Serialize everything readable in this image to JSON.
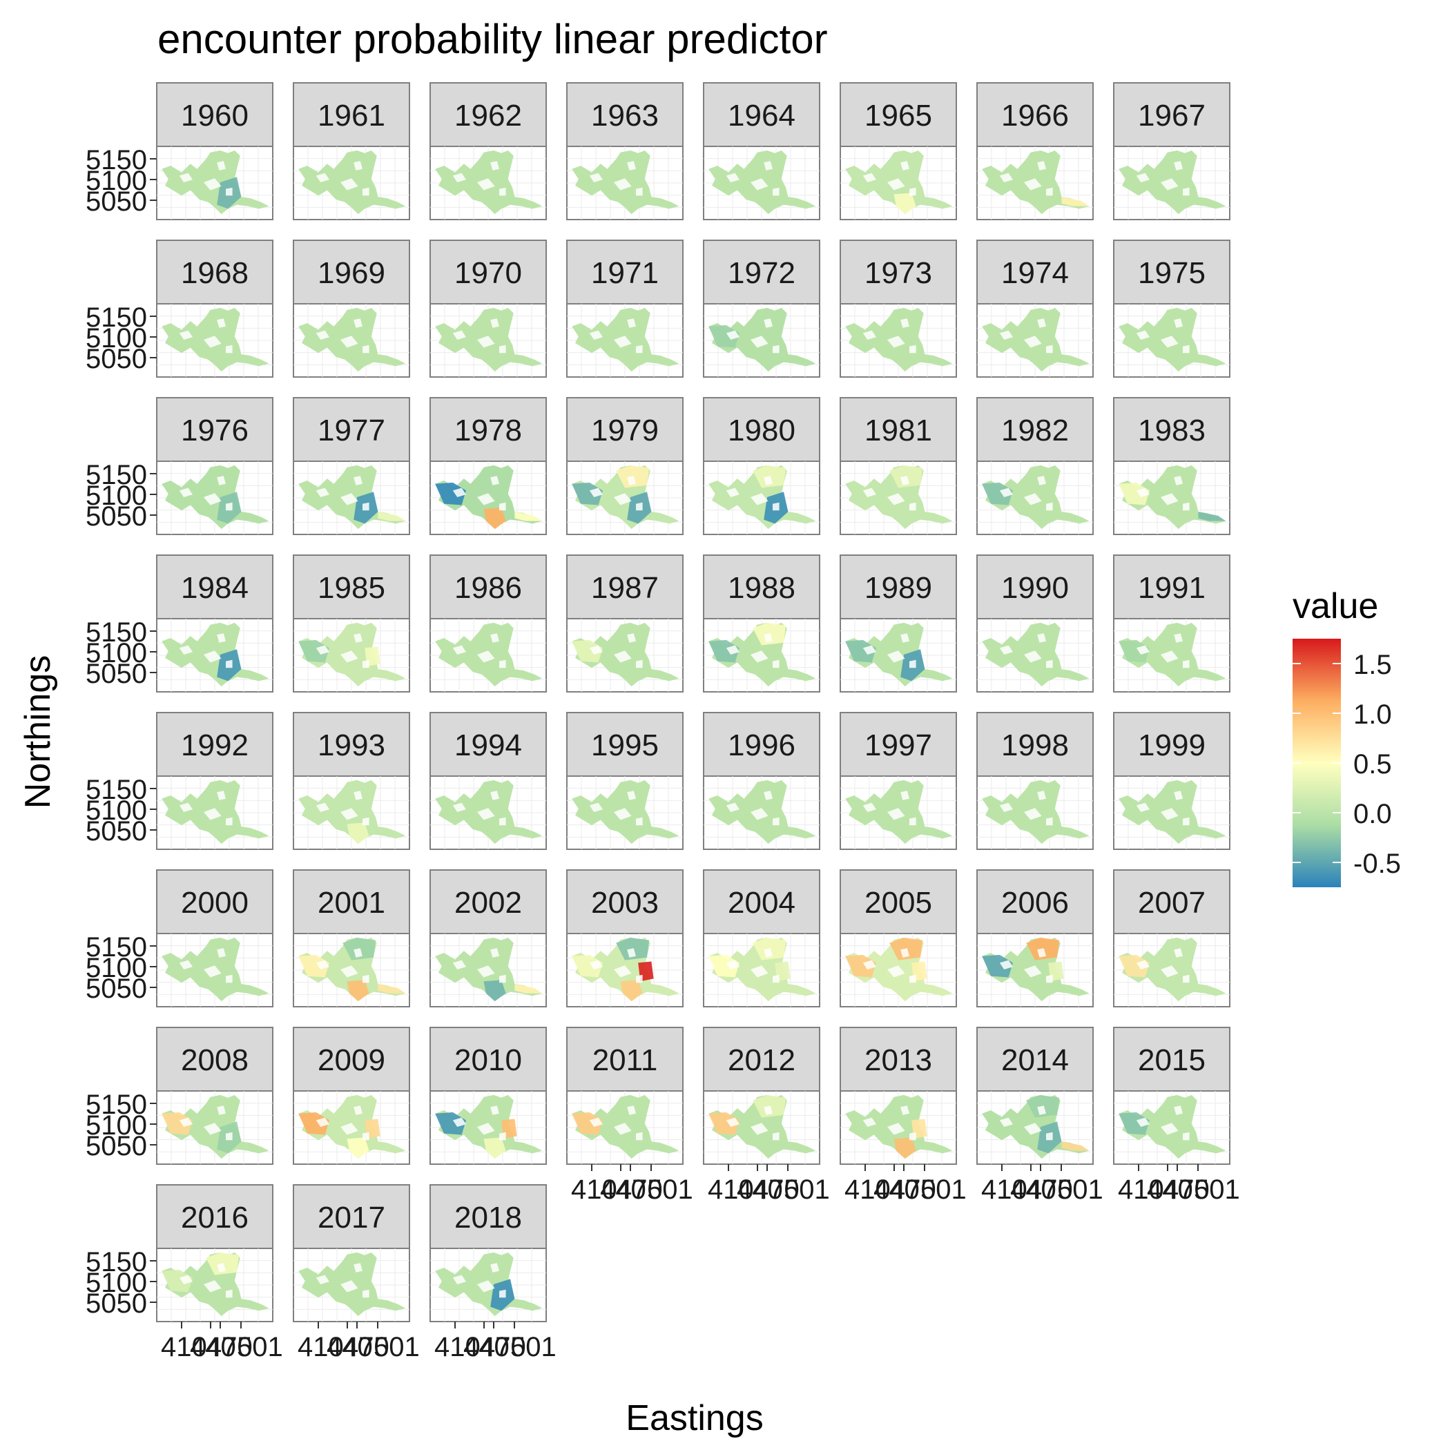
{
  "chart_data": {
    "type": "heatmap",
    "title": "encounter probability linear predictor",
    "xlabel": "Eastings",
    "ylabel": "Northings",
    "legend": {
      "title": "value",
      "placement": "right",
      "ticks": [
        1.5,
        1.0,
        0.5,
        0.0,
        -0.5
      ],
      "tick_labels": [
        "1.5",
        "1.0",
        "0.5",
        "0.0",
        "-0.5"
      ],
      "range": [
        -0.75,
        1.75
      ],
      "colors": [
        "#2b83ba",
        "#abdda4",
        "#ffffbf",
        "#fdae61",
        "#d7191c"
      ]
    },
    "y_ticks": [
      "5150",
      "5100",
      "5050"
    ],
    "y_tick_values": [
      5150,
      5100,
      5050
    ],
    "x_ticks": [
      "410",
      "440",
      "470",
      "501"
    ],
    "x_tick_values": [
      410,
      440,
      470,
      501
    ],
    "panel_note": "x tick labels overlap in the figure and render as '41ØØ87 1' style glyph clusters",
    "facets": [
      {
        "year": "1960",
        "lvl": 0.0,
        "hot": [
          {
            "r": "se",
            "v": -0.4
          }
        ]
      },
      {
        "year": "1961",
        "lvl": 0.0,
        "hot": []
      },
      {
        "year": "1962",
        "lvl": 0.0,
        "hot": []
      },
      {
        "year": "1963",
        "lvl": 0.0,
        "hot": []
      },
      {
        "year": "1964",
        "lvl": 0.0,
        "hot": []
      },
      {
        "year": "1965",
        "lvl": 0.05,
        "hot": [
          {
            "r": "s",
            "v": 0.45
          }
        ]
      },
      {
        "year": "1966",
        "lvl": 0.0,
        "hot": [
          {
            "r": "ee",
            "v": 0.6
          }
        ]
      },
      {
        "year": "1967",
        "lvl": 0.0,
        "hot": []
      },
      {
        "year": "1968",
        "lvl": 0.0,
        "hot": []
      },
      {
        "year": "1969",
        "lvl": 0.0,
        "hot": []
      },
      {
        "year": "1970",
        "lvl": 0.0,
        "hot": []
      },
      {
        "year": "1971",
        "lvl": 0.0,
        "hot": []
      },
      {
        "year": "1972",
        "lvl": -0.05,
        "hot": [
          {
            "r": "w",
            "v": -0.2
          }
        ]
      },
      {
        "year": "1973",
        "lvl": 0.0,
        "hot": []
      },
      {
        "year": "1974",
        "lvl": 0.0,
        "hot": []
      },
      {
        "year": "1975",
        "lvl": 0.0,
        "hot": []
      },
      {
        "year": "1976",
        "lvl": -0.05,
        "hot": [
          {
            "r": "se",
            "v": -0.3
          }
        ]
      },
      {
        "year": "1977",
        "lvl": 0.0,
        "hot": [
          {
            "r": "se",
            "v": -0.6
          },
          {
            "r": "ee",
            "v": 0.35
          }
        ]
      },
      {
        "year": "1978",
        "lvl": -0.1,
        "hot": [
          {
            "r": "w",
            "v": -0.7
          },
          {
            "r": "s",
            "v": 1.1
          },
          {
            "r": "ee",
            "v": 0.5
          }
        ]
      },
      {
        "year": "1979",
        "lvl": 0.05,
        "hot": [
          {
            "r": "n",
            "v": 0.6
          },
          {
            "r": "se",
            "v": -0.5
          },
          {
            "r": "w",
            "v": -0.4
          }
        ]
      },
      {
        "year": "1980",
        "lvl": 0.05,
        "hot": [
          {
            "r": "se",
            "v": -0.65
          },
          {
            "r": "n",
            "v": 0.35
          }
        ]
      },
      {
        "year": "1981",
        "lvl": 0.05,
        "hot": [
          {
            "r": "n",
            "v": 0.3
          }
        ]
      },
      {
        "year": "1982",
        "lvl": 0.0,
        "hot": [
          {
            "r": "w",
            "v": -0.3
          }
        ]
      },
      {
        "year": "1983",
        "lvl": 0.0,
        "hot": [
          {
            "r": "w",
            "v": 0.4
          },
          {
            "r": "ee",
            "v": -0.35
          }
        ]
      },
      {
        "year": "1984",
        "lvl": 0.0,
        "hot": [
          {
            "r": "se",
            "v": -0.6
          }
        ]
      },
      {
        "year": "1985",
        "lvl": 0.1,
        "hot": [
          {
            "r": "e",
            "v": 0.4
          },
          {
            "r": "w",
            "v": -0.2
          }
        ]
      },
      {
        "year": "1986",
        "lvl": 0.0,
        "hot": []
      },
      {
        "year": "1987",
        "lvl": 0.0,
        "hot": [
          {
            "r": "w",
            "v": 0.3
          }
        ]
      },
      {
        "year": "1988",
        "lvl": 0.0,
        "hot": [
          {
            "r": "n",
            "v": 0.45
          },
          {
            "r": "w",
            "v": -0.3
          }
        ]
      },
      {
        "year": "1989",
        "lvl": 0.0,
        "hot": [
          {
            "r": "se",
            "v": -0.55
          },
          {
            "r": "w",
            "v": -0.3
          }
        ]
      },
      {
        "year": "1990",
        "lvl": 0.0,
        "hot": []
      },
      {
        "year": "1991",
        "lvl": 0.0,
        "hot": [
          {
            "r": "w",
            "v": -0.15
          }
        ]
      },
      {
        "year": "1992",
        "lvl": 0.0,
        "hot": []
      },
      {
        "year": "1993",
        "lvl": 0.05,
        "hot": [
          {
            "r": "s",
            "v": 0.35
          }
        ]
      },
      {
        "year": "1994",
        "lvl": 0.0,
        "hot": []
      },
      {
        "year": "1995",
        "lvl": 0.0,
        "hot": []
      },
      {
        "year": "1996",
        "lvl": 0.0,
        "hot": []
      },
      {
        "year": "1997",
        "lvl": 0.0,
        "hot": []
      },
      {
        "year": "1998",
        "lvl": 0.0,
        "hot": []
      },
      {
        "year": "1999",
        "lvl": 0.0,
        "hot": []
      },
      {
        "year": "2000",
        "lvl": 0.0,
        "hot": []
      },
      {
        "year": "2001",
        "lvl": 0.1,
        "hot": [
          {
            "r": "w",
            "v": 0.6
          },
          {
            "r": "n",
            "v": -0.2
          },
          {
            "r": "s",
            "v": 1.0
          },
          {
            "r": "ee",
            "v": 0.7
          }
        ]
      },
      {
        "year": "2002",
        "lvl": 0.0,
        "hot": [
          {
            "r": "s",
            "v": -0.4
          },
          {
            "r": "ee",
            "v": 0.6
          }
        ]
      },
      {
        "year": "2003",
        "lvl": 0.15,
        "hot": [
          {
            "r": "e",
            "v": 1.7
          },
          {
            "r": "s",
            "v": 0.9
          },
          {
            "r": "w",
            "v": 0.4
          },
          {
            "r": "n",
            "v": -0.3
          }
        ]
      },
      {
        "year": "2004",
        "lvl": 0.15,
        "hot": [
          {
            "r": "w",
            "v": 0.5
          },
          {
            "r": "n",
            "v": 0.4
          },
          {
            "r": "e",
            "v": 0.3
          }
        ]
      },
      {
        "year": "2005",
        "lvl": 0.2,
        "hot": [
          {
            "r": "w",
            "v": 0.9
          },
          {
            "r": "n",
            "v": 1.0
          },
          {
            "r": "e",
            "v": 0.6
          }
        ]
      },
      {
        "year": "2006",
        "lvl": 0.0,
        "hot": [
          {
            "r": "w",
            "v": -0.5
          },
          {
            "r": "n",
            "v": 1.1
          },
          {
            "r": "e",
            "v": 0.3
          }
        ]
      },
      {
        "year": "2007",
        "lvl": 0.05,
        "hot": [
          {
            "r": "w",
            "v": 0.7
          }
        ]
      },
      {
        "year": "2008",
        "lvl": 0.0,
        "hot": [
          {
            "r": "w",
            "v": 0.8
          },
          {
            "r": "se",
            "v": -0.2
          }
        ]
      },
      {
        "year": "2009",
        "lvl": 0.1,
        "hot": [
          {
            "r": "w",
            "v": 1.1
          },
          {
            "r": "e",
            "v": 0.8
          },
          {
            "r": "s",
            "v": 0.5
          }
        ]
      },
      {
        "year": "2010",
        "lvl": 0.0,
        "hot": [
          {
            "r": "w",
            "v": -0.6
          },
          {
            "r": "e",
            "v": 1.0
          },
          {
            "r": "s",
            "v": 0.4
          }
        ]
      },
      {
        "year": "2011",
        "lvl": 0.0,
        "hot": [
          {
            "r": "w",
            "v": 0.9
          }
        ]
      },
      {
        "year": "2012",
        "lvl": 0.0,
        "hot": [
          {
            "r": "w",
            "v": 0.9
          },
          {
            "r": "n",
            "v": 0.3
          }
        ]
      },
      {
        "year": "2013",
        "lvl": 0.0,
        "hot": [
          {
            "r": "s",
            "v": 1.0
          },
          {
            "r": "e",
            "v": 0.7
          }
        ]
      },
      {
        "year": "2014",
        "lvl": -0.05,
        "hot": [
          {
            "r": "se",
            "v": -0.4
          },
          {
            "r": "ee",
            "v": 0.8
          },
          {
            "r": "n",
            "v": -0.2
          }
        ]
      },
      {
        "year": "2015",
        "lvl": 0.0,
        "hot": [
          {
            "r": "w",
            "v": -0.3
          }
        ]
      },
      {
        "year": "2016",
        "lvl": 0.0,
        "hot": [
          {
            "r": "n",
            "v": 0.4
          },
          {
            "r": "w",
            "v": 0.2
          }
        ]
      },
      {
        "year": "2017",
        "lvl": 0.0,
        "hot": []
      },
      {
        "year": "2018",
        "lvl": 0.0,
        "hot": [
          {
            "r": "se",
            "v": -0.65
          }
        ]
      }
    ]
  }
}
